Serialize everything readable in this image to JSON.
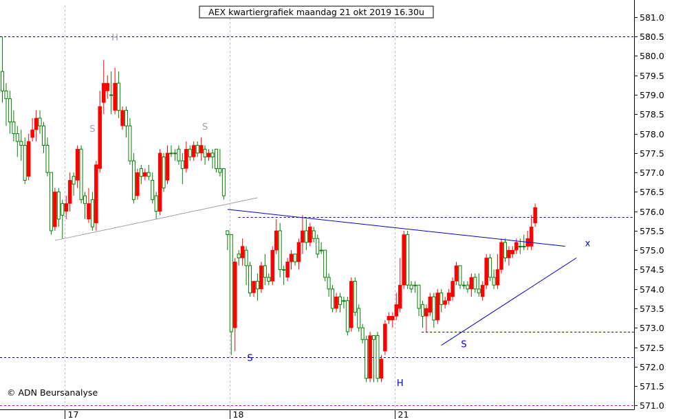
{
  "chart_data": {
    "type": "candlestick",
    "title": "AEX kwartiergrafiek maandag 21 okt 2019 16.30u",
    "watermark": "© ADN Beursanalyse",
    "ylim": [
      570.9,
      581.3
    ],
    "yticks": [
      571.0,
      571.5,
      572.0,
      572.5,
      573.0,
      573.5,
      574.0,
      574.5,
      575.0,
      575.5,
      576.0,
      576.5,
      577.0,
      577.5,
      578.0,
      578.5,
      579.0,
      579.5,
      580.0,
      580.5,
      581.0
    ],
    "ytick_labels": [
      "571.0",
      "571.5",
      "572.0",
      "572.5",
      "573.0",
      "573.5",
      "574.0",
      "574.5",
      "575.0",
      "575.5",
      "576.0",
      "576.5",
      "577.0",
      "577.5",
      "578.0",
      "578.5",
      "579.0",
      "579.5",
      "580.0",
      "580.5",
      "581.0"
    ],
    "xticks": [
      {
        "label": "17",
        "bar": 17
      },
      {
        "label": "18",
        "bar": 61
      },
      {
        "label": "21",
        "bar": 105
      }
    ],
    "colors": {
      "up": "#008000",
      "down": "#ff0000",
      "pattern_old": "#a0a0a0",
      "pattern_new": "#0000c8",
      "hline": "#000080",
      "lowline": "#c000c0",
      "grid": "#c0c0c0"
    },
    "candles": [
      [
        579.1,
        579.6,
        580.5,
        578.8
      ],
      [
        578.9,
        579.1,
        579.3,
        578.2
      ],
      [
        578.3,
        578.9,
        579.1,
        578.0
      ],
      [
        578.0,
        578.3,
        578.6,
        577.8
      ],
      [
        577.8,
        578.0,
        578.2,
        577.4
      ],
      [
        577.7,
        577.8,
        578.1,
        577.3
      ],
      [
        576.8,
        577.7,
        577.9,
        576.7
      ],
      [
        577.8,
        576.9,
        578.0,
        576.8
      ],
      [
        578.1,
        577.9,
        578.4,
        577.8
      ],
      [
        578.4,
        578.1,
        578.6,
        577.8
      ],
      [
        578.2,
        578.4,
        578.6,
        578.0
      ],
      [
        577.7,
        578.2,
        578.3,
        577.5
      ],
      [
        577.0,
        577.7,
        577.9,
        576.9
      ],
      [
        575.5,
        577.0,
        577.0,
        575.4
      ],
      [
        576.5,
        575.6,
        576.6,
        575.5
      ],
      [
        575.8,
        576.5,
        576.6,
        575.6
      ],
      [
        575.9,
        576.2,
        576.3,
        575.3
      ],
      [
        576.2,
        576.0,
        576.4,
        575.8
      ],
      [
        576.8,
        576.2,
        577.0,
        576.0
      ],
      [
        576.7,
        576.9,
        577.0,
        576.4
      ],
      [
        577.6,
        576.8,
        577.7,
        576.6
      ],
      [
        576.3,
        577.6,
        577.7,
        576.2
      ],
      [
        576.2,
        576.4,
        576.5,
        575.8
      ],
      [
        576.2,
        575.8,
        576.6,
        575.7
      ],
      [
        575.6,
        576.3,
        576.5,
        575.5
      ],
      [
        577.2,
        575.7,
        577.3,
        575.5
      ],
      [
        578.7,
        577.1,
        579.1,
        577.0
      ],
      [
        579.3,
        578.8,
        579.9,
        578.5
      ],
      [
        579.3,
        579.1,
        579.5,
        578.9
      ],
      [
        579.0,
        579.0,
        579.6,
        578.5
      ],
      [
        579.3,
        578.6,
        579.7,
        578.5
      ],
      [
        578.6,
        579.3,
        579.6,
        578.4
      ],
      [
        578.6,
        578.2,
        578.7,
        578.1
      ],
      [
        578.2,
        578.6,
        578.7,
        577.9
      ],
      [
        577.3,
        578.2,
        578.4,
        577.2
      ],
      [
        576.3,
        577.3,
        577.5,
        576.2
      ],
      [
        577.0,
        576.4,
        577.1,
        576.3
      ],
      [
        576.9,
        577.1,
        577.2,
        576.7
      ],
      [
        577.0,
        576.9,
        577.1,
        576.8
      ],
      [
        576.9,
        577.0,
        577.2,
        576.8
      ],
      [
        576.3,
        576.8,
        577.0,
        576.2
      ],
      [
        576.0,
        576.4,
        576.5,
        575.8
      ],
      [
        577.5,
        576.0,
        577.6,
        575.9
      ],
      [
        576.6,
        577.4,
        577.5,
        576.5
      ],
      [
        577.5,
        576.8,
        577.7,
        576.7
      ],
      [
        577.5,
        577.5,
        577.7,
        577.4
      ],
      [
        577.5,
        577.5,
        577.6,
        577.3
      ],
      [
        577.3,
        577.6,
        577.7,
        577.2
      ],
      [
        577.1,
        577.3,
        577.5,
        576.7
      ],
      [
        577.6,
        577.1,
        577.8,
        577.0
      ],
      [
        577.4,
        577.6,
        577.7,
        577.3
      ],
      [
        577.7,
        577.4,
        577.8,
        577.3
      ],
      [
        577.5,
        577.7,
        577.8,
        577.4
      ],
      [
        577.7,
        577.5,
        577.9,
        577.3
      ],
      [
        577.4,
        577.6,
        577.7,
        577.2
      ],
      [
        577.5,
        577.4,
        577.6,
        577.3
      ],
      [
        577.4,
        577.5,
        577.6,
        577.1
      ],
      [
        577.1,
        577.6,
        577.6,
        577.0
      ],
      [
        577.0,
        577.1,
        577.6,
        576.9
      ],
      [
        576.4,
        577.1,
        577.1,
        576.3
      ],
      [
        575.4,
        575.5,
        575.5,
        575.0
      ],
      [
        572.9,
        575.4,
        575.4,
        572.3
      ],
      [
        574.7,
        573.0,
        574.8,
        572.4
      ],
      [
        574.8,
        574.9,
        575.0,
        574.6
      ],
      [
        575.1,
        574.8,
        575.3,
        574.6
      ],
      [
        574.6,
        575.0,
        575.1,
        574.1
      ],
      [
        573.9,
        574.6,
        574.7,
        573.8
      ],
      [
        574.2,
        573.9,
        574.2,
        573.8
      ],
      [
        574.0,
        574.2,
        574.4,
        573.7
      ],
      [
        574.6,
        574.0,
        574.7,
        573.9
      ],
      [
        574.3,
        574.6,
        574.9,
        574.1
      ],
      [
        574.2,
        574.3,
        574.4,
        574.1
      ],
      [
        575.0,
        574.2,
        575.1,
        574.1
      ],
      [
        575.5,
        575.0,
        575.8,
        574.9
      ],
      [
        574.5,
        575.5,
        575.7,
        574.3
      ],
      [
        574.5,
        574.5,
        574.6,
        574.1
      ],
      [
        574.7,
        574.3,
        574.8,
        574.2
      ],
      [
        574.9,
        574.7,
        575.0,
        574.5
      ],
      [
        574.7,
        574.9,
        574.9,
        574.6
      ],
      [
        575.2,
        574.7,
        575.3,
        574.5
      ],
      [
        575.5,
        575.2,
        575.9,
        574.9
      ],
      [
        575.2,
        575.5,
        575.8,
        575.0
      ],
      [
        575.6,
        575.2,
        575.7,
        575.1
      ],
      [
        575.3,
        575.5,
        575.6,
        575.2
      ],
      [
        574.9,
        575.3,
        575.4,
        574.8
      ],
      [
        575.0,
        575.0,
        575.2,
        574.9
      ],
      [
        574.3,
        575.0,
        575.0,
        574.2
      ],
      [
        574.0,
        574.3,
        574.4,
        573.8
      ],
      [
        573.5,
        574.0,
        574.1,
        573.4
      ],
      [
        573.8,
        573.5,
        573.9,
        573.4
      ],
      [
        573.6,
        573.8,
        573.9,
        573.4
      ],
      [
        573.7,
        573.7,
        573.8,
        573.5
      ],
      [
        572.9,
        573.7,
        573.8,
        572.8
      ],
      [
        574.2,
        573.0,
        574.3,
        572.9
      ],
      [
        573.4,
        574.2,
        574.3,
        573.3
      ],
      [
        573.0,
        573.5,
        573.6,
        572.9
      ],
      [
        572.7,
        573.0,
        573.1,
        572.6
      ],
      [
        571.7,
        572.7,
        572.8,
        571.6
      ],
      [
        572.8,
        571.7,
        572.9,
        571.6
      ],
      [
        572.7,
        572.8,
        572.8,
        571.6
      ],
      [
        571.7,
        572.8,
        572.9,
        571.6
      ],
      [
        572.2,
        571.7,
        572.3,
        571.6
      ],
      [
        573.1,
        572.4,
        573.2,
        572.3
      ],
      [
        573.3,
        573.2,
        573.4,
        573.1
      ],
      [
        573.3,
        573.2,
        573.4,
        573.0
      ],
      [
        573.6,
        573.3,
        573.9,
        573.2
      ],
      [
        574.1,
        573.5,
        574.8,
        573.4
      ],
      [
        575.4,
        574.1,
        575.5,
        574.0
      ],
      [
        574.1,
        575.4,
        575.5,
        574.0
      ],
      [
        574.0,
        574.1,
        574.2,
        573.9
      ],
      [
        574.1,
        574.1,
        574.2,
        573.9
      ],
      [
        573.5,
        574.1,
        574.1,
        573.3
      ],
      [
        573.3,
        573.6,
        573.7,
        573.0
      ],
      [
        573.5,
        573.3,
        573.6,
        572.9
      ],
      [
        573.8,
        573.4,
        573.9,
        573.3
      ],
      [
        573.2,
        573.8,
        573.9,
        573.0
      ],
      [
        573.9,
        573.2,
        574.0,
        573.1
      ],
      [
        573.6,
        573.9,
        574.0,
        573.4
      ],
      [
        573.7,
        573.6,
        573.8,
        573.5
      ],
      [
        573.9,
        573.7,
        574.0,
        573.6
      ],
      [
        574.2,
        573.8,
        574.3,
        573.7
      ],
      [
        574.6,
        574.2,
        574.7,
        574.1
      ],
      [
        574.1,
        574.6,
        574.6,
        574.0
      ],
      [
        574.1,
        574.1,
        574.2,
        574.0
      ],
      [
        574.0,
        574.1,
        574.2,
        573.9
      ],
      [
        574.3,
        574.0,
        574.4,
        573.8
      ],
      [
        574.0,
        574.3,
        574.4,
        573.9
      ],
      [
        573.9,
        574.0,
        574.4,
        573.8
      ],
      [
        574.1,
        573.8,
        574.2,
        573.7
      ],
      [
        574.8,
        574.1,
        574.9,
        574.0
      ],
      [
        574.3,
        574.8,
        574.9,
        574.2
      ],
      [
        574.1,
        574.3,
        574.5,
        574.0
      ],
      [
        574.5,
        574.1,
        574.9,
        574.0
      ],
      [
        575.2,
        574.5,
        575.3,
        574.4
      ],
      [
        574.8,
        575.2,
        575.3,
        574.7
      ],
      [
        575.0,
        574.8,
        575.1,
        574.6
      ],
      [
        575.0,
        574.9,
        575.1,
        574.8
      ],
      [
        575.2,
        575.0,
        575.3,
        574.9
      ],
      [
        575.1,
        575.1,
        575.3,
        574.9
      ],
      [
        575.1,
        575.1,
        575.4,
        575.0
      ],
      [
        575.3,
        575.1,
        575.5,
        575.0
      ],
      [
        575.6,
        575.1,
        575.9,
        575.0
      ],
      [
        576.1,
        575.7,
        576.2,
        575.6
      ]
    ],
    "hlines": [
      {
        "value": 580.5,
        "color": "#000080",
        "x0": 0,
        "x1": 1.0
      },
      {
        "value": 575.85,
        "color": "#000080",
        "x0": 0.376,
        "x1": 1.0
      },
      {
        "value": 572.9,
        "color": "#000080",
        "x0": 0.665,
        "x1": 1.0
      },
      {
        "value": 572.25,
        "color": "#000080",
        "x0": 0,
        "x1": 1.0
      },
      {
        "value": 571.0,
        "color": "#c000c0",
        "x0": 0,
        "x1": 1.0
      }
    ],
    "trendlines": [
      {
        "from": [
          14,
          575.25
        ],
        "to": [
          68,
          576.35
        ],
        "color": "#a0a0a0"
      },
      {
        "from": [
          60,
          576.05
        ],
        "to": [
          150,
          575.1
        ],
        "color": "#0000c8"
      },
      {
        "from": [
          117,
          572.55
        ],
        "to": [
          153,
          574.8
        ],
        "color": "#0000c8"
      }
    ],
    "annotations": [
      {
        "text": "H",
        "bar": 30,
        "value": 580.4,
        "color": "#a0a0a0"
      },
      {
        "text": "S",
        "bar": 24,
        "value": 578.05,
        "color": "#a0a0a0"
      },
      {
        "text": "S",
        "bar": 54,
        "value": 578.1,
        "color": "#a0a0a0"
      },
      {
        "text": "S",
        "bar": 66,
        "value": 572.15,
        "color": "#0000c8"
      },
      {
        "text": "H",
        "bar": 106,
        "value": 571.5,
        "color": "#0000c8"
      },
      {
        "text": "S",
        "bar": 123,
        "value": 572.5,
        "color": "#0000c8"
      },
      {
        "text": "x",
        "bar": 156,
        "value": 575.1,
        "color": "#0000c8"
      }
    ]
  }
}
